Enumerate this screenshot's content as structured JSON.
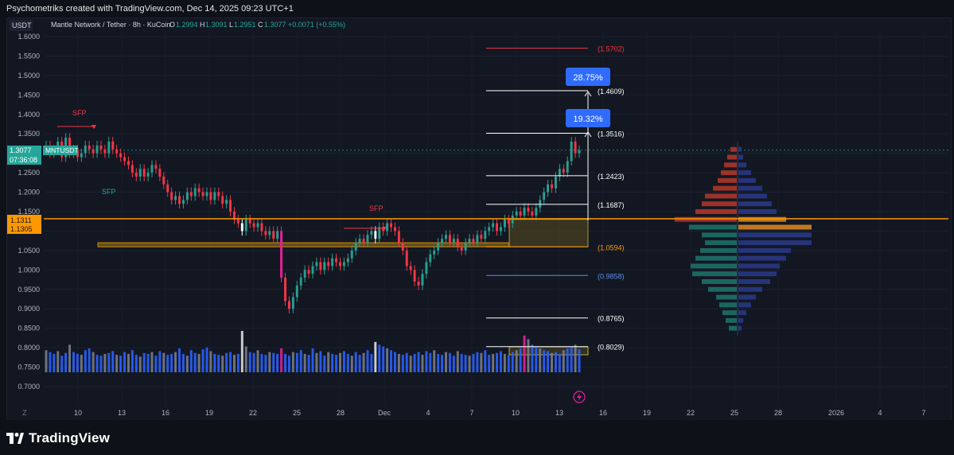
{
  "header": {
    "caption": "Psychometriks created with TradingView.com, Dec 14, 2025 09:23 UTC+1"
  },
  "legend": {
    "currency": "USDT",
    "symbol": "Mantle Network / Tether · 8h · KuCoin",
    "o_label": "O",
    "o_value": "1.2994",
    "h_label": "H",
    "h_value": "1.3091",
    "l_label": "L",
    "l_value": "1.2951",
    "c_label": "C",
    "c_value": "1.3077",
    "change": "+0.0071 (+0.55%)"
  },
  "price_tags": {
    "last_price": "1.3077",
    "ticker": "MNTUSDT",
    "countdown": "07:36:08",
    "level_top": "1.1311",
    "level_bottom": "1.1305"
  },
  "annotations": {
    "sfp_labels": [
      "SFP",
      "SFP",
      "SFP"
    ],
    "target_top_pct": "28.75%",
    "target_mid_pct": "19.32%"
  },
  "timezone_label": "Z",
  "branding": {
    "logo_text": "TradingView"
  },
  "colors": {
    "up": "#f23645",
    "down": "#2a9d8f",
    "volume_blue": "#2962ff",
    "volume_gray": "#7a7d85",
    "magenta": "#e91e9c",
    "level_orange": "#ff9800",
    "box_fill": "#6b5a1e",
    "target_blue": "#2f6bff"
  },
  "chart_data": {
    "type": "candlestick",
    "yaxis_ticks": [
      "1.6000",
      "1.5500",
      "1.5000",
      "1.4500",
      "1.4000",
      "1.3500",
      "1.3000",
      "1.2500",
      "1.2000",
      "1.1500",
      "1.1000",
      "1.0500",
      "1.0000",
      "0.9500",
      "0.9000",
      "0.8500",
      "0.8000",
      "0.7500",
      "0.7000"
    ],
    "ylim": [
      0.68,
      1.62
    ],
    "xaxis_ticks": [
      "10",
      "13",
      "16",
      "19",
      "22",
      "25",
      "28",
      "Dec",
      "4",
      "7",
      "10",
      "13",
      "16",
      "19",
      "22",
      "25",
      "28",
      "2026",
      "4",
      "7"
    ],
    "fib_levels": [
      {
        "label": "(1.5702)",
        "value": 1.5702,
        "color": "#f23645"
      },
      {
        "label": "(1.4609)",
        "value": 1.4609,
        "color": "#ffffff"
      },
      {
        "label": "(1.3516)",
        "value": 1.3516,
        "color": "#ffffff"
      },
      {
        "label": "(1.2423)",
        "value": 1.2423,
        "color": "#ffffff"
      },
      {
        "label": "(1.1687)",
        "value": 1.1687,
        "color": "#ffffff"
      },
      {
        "label": "(1.0594)",
        "value": 1.0594,
        "color": "#ff9800"
      },
      {
        "label": "(0.9858)",
        "value": 0.9858,
        "color": "#5b8def"
      },
      {
        "label": "(0.8765)",
        "value": 0.8765,
        "color": "#ffffff"
      },
      {
        "label": "(0.8029)",
        "value": 0.8029,
        "color": "#ffffff"
      }
    ],
    "horizontal_level": 1.1311,
    "support_zone": [
      1.0594,
      1.07
    ],
    "closes": [
      1.32,
      1.3,
      1.31,
      1.33,
      1.29,
      1.34,
      1.3,
      1.31,
      1.29,
      1.3,
      1.32,
      1.31,
      1.3,
      1.32,
      1.31,
      1.3,
      1.33,
      1.31,
      1.3,
      1.29,
      1.28,
      1.27,
      1.25,
      1.24,
      1.26,
      1.24,
      1.25,
      1.27,
      1.26,
      1.24,
      1.22,
      1.2,
      1.18,
      1.19,
      1.17,
      1.18,
      1.2,
      1.19,
      1.21,
      1.2,
      1.19,
      1.2,
      1.18,
      1.2,
      1.19,
      1.17,
      1.18,
      1.15,
      1.13,
      1.12,
      1.1,
      1.13,
      1.12,
      1.11,
      1.12,
      1.1,
      1.09,
      1.1,
      1.08,
      1.1,
      0.98,
      0.92,
      0.9,
      0.93,
      0.96,
      0.98,
      1.0,
      0.99,
      1.01,
      1.02,
      1.0,
      1.02,
      1.01,
      1.03,
      1.02,
      1.01,
      1.02,
      1.03,
      1.05,
      1.07,
      1.08,
      1.07,
      1.09,
      1.1,
      1.08,
      1.11,
      1.1,
      1.12,
      1.11,
      1.1,
      1.07,
      1.05,
      1.01,
      1.0,
      0.97,
      0.96,
      0.99,
      1.02,
      1.04,
      1.05,
      1.07,
      1.08,
      1.09,
      1.07,
      1.08,
      1.06,
      1.05,
      1.07,
      1.08,
      1.07,
      1.09,
      1.08,
      1.1,
      1.11,
      1.12,
      1.1,
      1.11,
      1.13,
      1.12,
      1.14,
      1.15,
      1.14,
      1.16,
      1.15,
      1.14,
      1.16,
      1.18,
      1.2,
      1.22,
      1.21,
      1.24,
      1.26,
      1.25,
      1.28,
      1.33,
      1.3,
      1.3077
    ],
    "volumes": [
      24,
      22,
      20,
      23,
      18,
      21,
      30,
      22,
      20,
      19,
      24,
      26,
      22,
      19,
      18,
      20,
      21,
      23,
      19,
      18,
      22,
      20,
      24,
      19,
      17,
      21,
      20,
      22,
      18,
      23,
      21,
      19,
      20,
      22,
      26,
      20,
      18,
      24,
      21,
      20,
      25,
      27,
      23,
      20,
      19,
      18,
      21,
      22,
      19,
      20,
      45,
      28,
      22,
      21,
      24,
      20,
      19,
      22,
      21,
      20,
      26,
      20,
      18,
      22,
      21,
      24,
      20,
      19,
      26,
      21,
      23,
      18,
      22,
      20,
      19,
      21,
      23,
      20,
      18,
      22,
      19,
      21,
      24,
      20,
      33,
      30,
      28,
      26,
      24,
      22,
      20,
      19,
      21,
      18,
      20,
      22,
      19,
      23,
      21,
      24,
      20,
      19,
      22,
      21,
      18,
      23,
      20,
      19,
      18,
      20,
      22,
      21,
      24,
      19,
      20,
      21,
      23,
      20,
      19,
      22,
      24,
      26,
      40,
      36,
      30,
      28,
      26,
      24,
      23,
      21,
      22,
      20,
      24,
      26,
      28,
      30,
      25
    ]
  }
}
